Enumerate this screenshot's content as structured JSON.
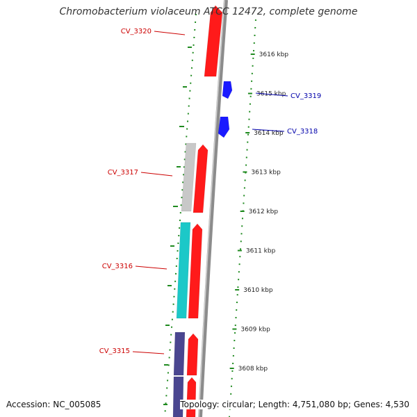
{
  "title": "Chromobacterium violaceum ATCC 12472, complete genome",
  "accession_text": "Accession: NC_005085",
  "summary_text": "Topology: circular; Length: 4,751,080 bp; Genes: 4,530",
  "colors": {
    "backbone": "#8c8c8c",
    "forward_cds": "#ff1a1a",
    "reverse_cds": "#1a1aff",
    "gray_feature": "#c8c8c8",
    "cyan_feature": "#1cc8c8",
    "navy_feature": "#4a4690",
    "ticks": "#1f8a1f",
    "forward_label": "#cc0000",
    "reverse_label": "#0000aa"
  },
  "kbp_ticks": [
    {
      "kbp": 3616,
      "label": "3616 kbp"
    },
    {
      "kbp": 3615,
      "label": "3615 kbp"
    },
    {
      "kbp": 3614,
      "label": "3614 kbp"
    },
    {
      "kbp": 3613,
      "label": "3613 kbp"
    },
    {
      "kbp": 3612,
      "label": "3612 kbp"
    },
    {
      "kbp": 3611,
      "label": "3611 kbp"
    },
    {
      "kbp": 3610,
      "label": "3610 kbp"
    },
    {
      "kbp": 3609,
      "label": "3609 kbp"
    },
    {
      "kbp": 3608,
      "label": "3608 kbp"
    }
  ],
  "gene_labels": [
    {
      "name": "CV_3320",
      "strand": "forward"
    },
    {
      "name": "CV_3319",
      "strand": "reverse"
    },
    {
      "name": "CV_3318",
      "strand": "reverse"
    },
    {
      "name": "CV_3317",
      "strand": "forward"
    },
    {
      "name": "CV_3316",
      "strand": "forward"
    },
    {
      "name": "CV_3315",
      "strand": "forward"
    }
  ]
}
